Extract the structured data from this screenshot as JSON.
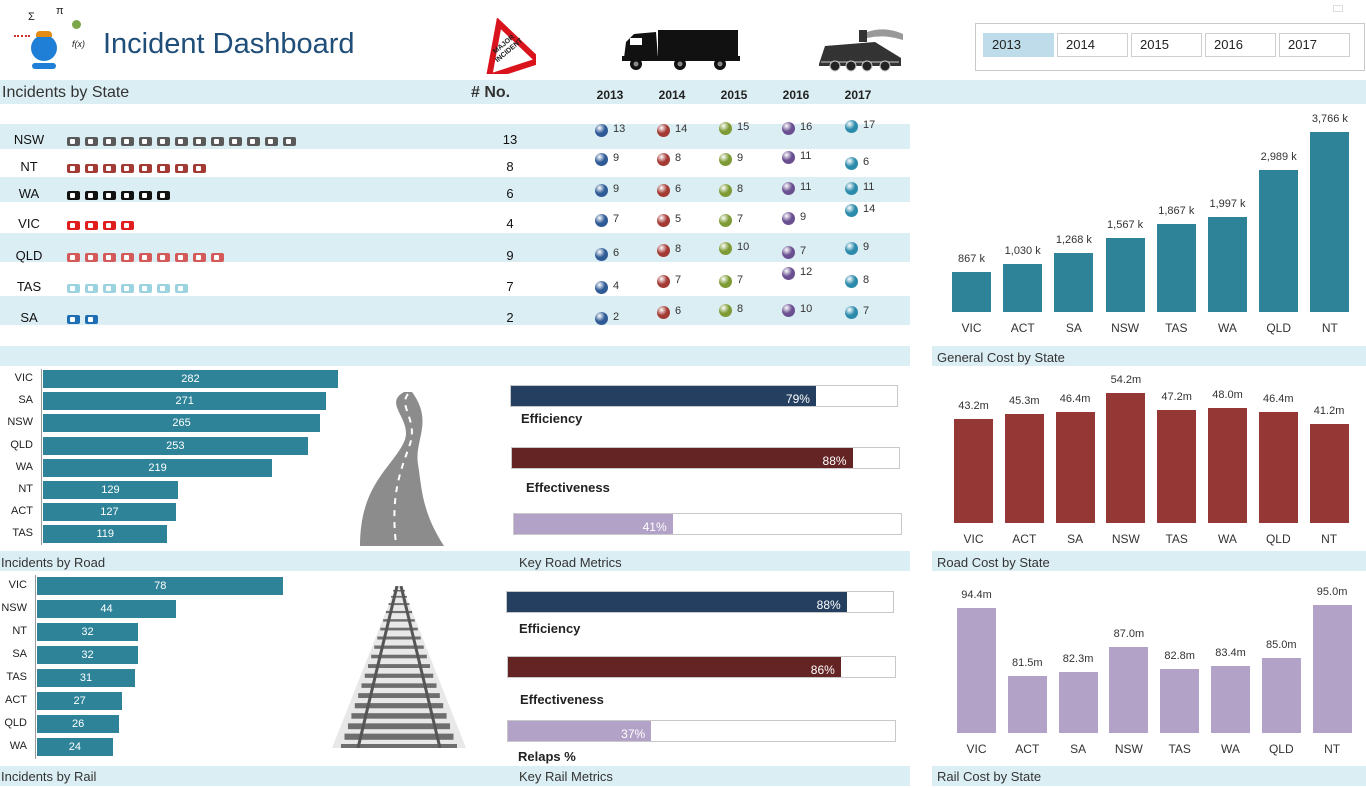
{
  "header": {
    "title": "Incident Dashboard",
    "logo_icons": [
      "sigma-symbol",
      "pi-symbol",
      "f-of-x-symbol",
      "mascot-icon"
    ],
    "sign_text": "MAJOR INCIDENT",
    "truck_icon": "truck-icon",
    "train_icon": "train-icon"
  },
  "year_slicer": {
    "years": [
      "2013",
      "2014",
      "2015",
      "2016",
      "2017"
    ],
    "selected": "2013"
  },
  "incidents_by_state": {
    "title": "Incidents by State",
    "count_header": "# No.",
    "year_headers": [
      "2013",
      "2014",
      "2015",
      "2016",
      "2017"
    ],
    "ball_colors": [
      "#2e5a96",
      "#a33a34",
      "#7d9a34",
      "#6a4f91",
      "#2c8bab"
    ],
    "rows": [
      {
        "state": "NSW",
        "count": "13",
        "icon_color": "#595959",
        "years": [
          "13",
          "14",
          "15",
          "16",
          "17"
        ]
      },
      {
        "state": "NT",
        "count": "8",
        "icon_color": "#a33a34",
        "years": [
          "9",
          "8",
          "9",
          "11",
          "6"
        ]
      },
      {
        "state": "WA",
        "count": "6",
        "icon_color": "#111111",
        "years": [
          "9",
          "6",
          "8",
          "11",
          "11"
        ]
      },
      {
        "state": "VIC",
        "count": "4",
        "icon_color": "#e01e1e",
        "years": [
          "7",
          "5",
          "7",
          "9",
          "14"
        ]
      },
      {
        "state": "QLD",
        "count": "9",
        "icon_color": "#d45a5a",
        "years": [
          "6",
          "8",
          "10",
          "7",
          "9"
        ]
      },
      {
        "state": "TAS",
        "count": "7",
        "icon_color": "#9cd3e0",
        "years": [
          "4",
          "7",
          "7",
          "12",
          "8"
        ]
      },
      {
        "state": "SA",
        "count": "2",
        "icon_color": "#1f6fb5",
        "years": [
          "2",
          "6",
          "8",
          "10",
          "7"
        ]
      }
    ]
  },
  "general_cost": {
    "title": "General Cost by State",
    "color": "#2e8399",
    "chart_data": {
      "type": "bar",
      "categories": [
        "VIC",
        "ACT",
        "SA",
        "NSW",
        "TAS",
        "WA",
        "QLD",
        "NT"
      ],
      "values": [
        867,
        1030,
        1268,
        1567,
        1867,
        1997,
        2989,
        3766
      ],
      "labels": [
        "867 k",
        "1,030 k",
        "1,268 k",
        "1,567 k",
        "1,867 k",
        "1,997 k",
        "2,989 k",
        "3,766 k"
      ]
    }
  },
  "incidents_by_road": {
    "title": "Incidents by Road",
    "color": "#2e8399",
    "chart_data": {
      "type": "bar",
      "orientation": "horizontal",
      "categories": [
        "VIC",
        "SA",
        "NSW",
        "QLD",
        "WA",
        "NT",
        "ACT",
        "TAS"
      ],
      "values": [
        282,
        271,
        265,
        253,
        219,
        129,
        127,
        119
      ]
    }
  },
  "key_road_metrics": {
    "title": "Key Road Metrics",
    "metrics": [
      {
        "name": "Efficiency",
        "value": 79,
        "label": "79%",
        "color": "#243f60"
      },
      {
        "name": "Effectiveness",
        "value": 88,
        "label": "88%",
        "color": "#632423"
      },
      {
        "name": "",
        "value": 41,
        "label": "41%",
        "color": "#b3a2c7"
      }
    ]
  },
  "road_cost": {
    "title": "Road Cost by State",
    "color": "#953735",
    "chart_data": {
      "type": "bar",
      "categories": [
        "VIC",
        "ACT",
        "SA",
        "NSW",
        "TAS",
        "WA",
        "QLD",
        "NT"
      ],
      "values": [
        43.2,
        45.3,
        46.4,
        54.2,
        47.2,
        48.0,
        46.4,
        41.2
      ],
      "labels": [
        "43.2m",
        "45.3m",
        "46.4m",
        "54.2m",
        "47.2m",
        "48.0m",
        "46.4m",
        "41.2m"
      ]
    }
  },
  "incidents_by_rail": {
    "title": "Incidents by Rail",
    "color": "#2e8399",
    "chart_data": {
      "type": "bar",
      "orientation": "horizontal",
      "categories": [
        "VIC",
        "NSW",
        "NT",
        "SA",
        "TAS",
        "ACT",
        "QLD",
        "WA"
      ],
      "values": [
        78,
        44,
        32,
        32,
        31,
        27,
        26,
        24
      ]
    }
  },
  "key_rail_metrics": {
    "title": "Key Rail Metrics",
    "metrics": [
      {
        "name": "Efficiency",
        "value": 88,
        "label": "88%",
        "color": "#243f60"
      },
      {
        "name": "Effectiveness",
        "value": 86,
        "label": "86%",
        "color": "#632423"
      },
      {
        "name": "Relaps %",
        "value": 37,
        "label": "37%",
        "color": "#b3a2c7"
      }
    ]
  },
  "rail_cost": {
    "title": "Rail Cost by State",
    "color": "#b3a2c7",
    "chart_data": {
      "type": "bar",
      "categories": [
        "VIC",
        "ACT",
        "SA",
        "NSW",
        "TAS",
        "WA",
        "QLD",
        "NT"
      ],
      "values": [
        94.4,
        81.5,
        82.3,
        87.0,
        82.8,
        83.4,
        85.0,
        95.0
      ],
      "labels": [
        "94.4m",
        "81.5m",
        "82.3m",
        "87.0m",
        "82.8m",
        "83.4m",
        "85.0m",
        "95.0m"
      ]
    }
  }
}
